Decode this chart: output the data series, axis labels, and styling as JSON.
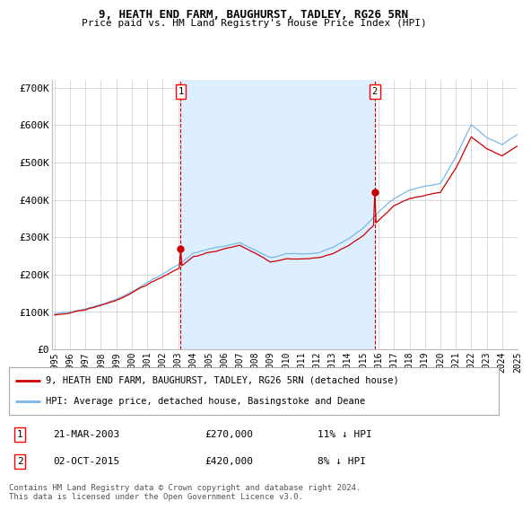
{
  "title": "9, HEATH END FARM, BAUGHURST, TADLEY, RG26 5RN",
  "subtitle": "Price paid vs. HM Land Registry's House Price Index (HPI)",
  "ylim": [
    0,
    720000
  ],
  "yticks": [
    0,
    100000,
    200000,
    300000,
    400000,
    500000,
    600000,
    700000
  ],
  "ytick_labels": [
    "£0",
    "£100K",
    "£200K",
    "£300K",
    "£400K",
    "£500K",
    "£600K",
    "£700K"
  ],
  "hpi_color": "#7ab8e8",
  "price_color": "#cc0000",
  "fill_color": "#ddeeff",
  "marker1_label": "1",
  "marker1_date": "21-MAR-2003",
  "marker1_price": "£270,000",
  "marker1_hpi": "11% ↓ HPI",
  "marker2_label": "2",
  "marker2_date": "02-OCT-2015",
  "marker2_price": "£420,000",
  "marker2_hpi": "8% ↓ HPI",
  "legend_line1": "9, HEATH END FARM, BAUGHURST, TADLEY, RG26 5RN (detached house)",
  "legend_line2": "HPI: Average price, detached house, Basingstoke and Deane",
  "footer": "Contains HM Land Registry data © Crown copyright and database right 2024.\nThis data is licensed under the Open Government Licence v3.0.",
  "background_color": "#ffffff",
  "grid_color": "#cccccc",
  "xtick_years": [
    "1995",
    "1996",
    "1997",
    "1998",
    "1999",
    "2000",
    "2001",
    "2002",
    "2003",
    "2004",
    "2005",
    "2006",
    "2007",
    "2008",
    "2009",
    "2010",
    "2011",
    "2012",
    "2013",
    "2014",
    "2015",
    "2016",
    "2017",
    "2018",
    "2019",
    "2020",
    "2021",
    "2022",
    "2023",
    "2024",
    "2025"
  ],
  "marker1_month_idx": 99,
  "marker2_month_idx": 249,
  "marker1_price_val": 270000,
  "marker2_price_val": 420000,
  "total_months": 361
}
